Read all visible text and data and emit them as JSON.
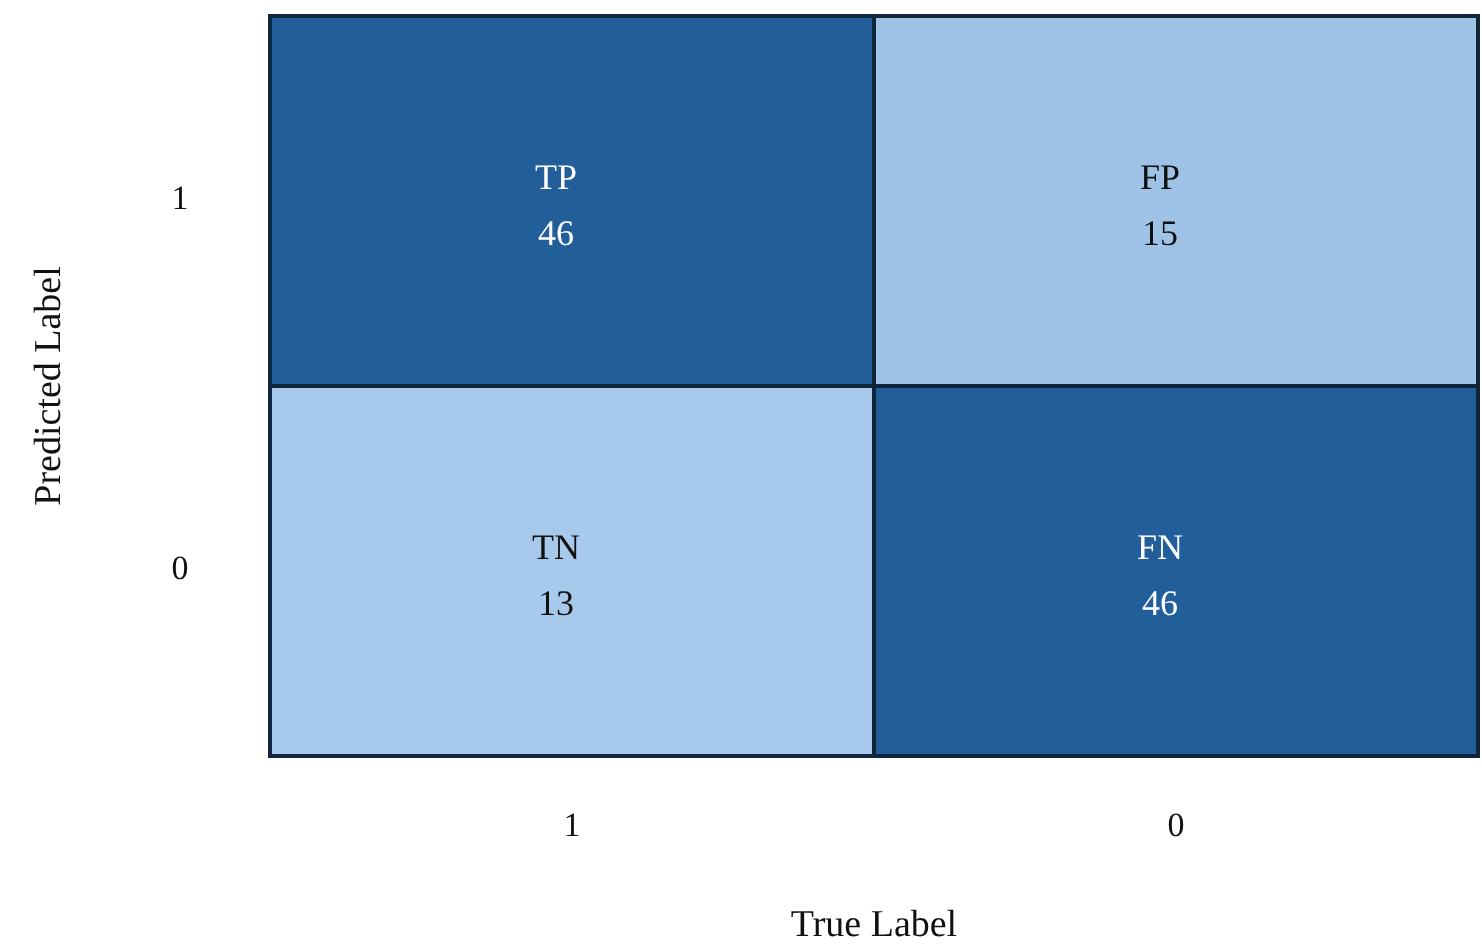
{
  "chart_data": {
    "type": "heatmap",
    "xlabel": "True Label",
    "ylabel": "Predicted Label",
    "categories": [
      "1",
      "0"
    ],
    "y_categories": [
      "1",
      "0"
    ],
    "cells": [
      [
        46,
        15
      ],
      [
        13,
        46
      ]
    ],
    "data_labels": true,
    "annotations": [
      "TP",
      "FP",
      "TN",
      "FN"
    ],
    "colors": [
      "#a7caec",
      "#215e9a"
    ]
  }
}
